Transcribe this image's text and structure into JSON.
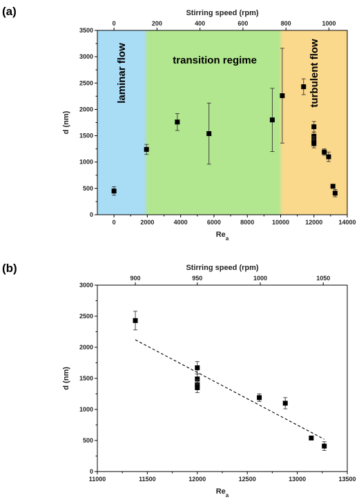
{
  "chart_data": [
    {
      "type": "scatter",
      "panel_label": "(a)",
      "xlabel_main": "Re",
      "xlabel_sub": "a",
      "ylabel": "d (nm)",
      "top_xlabel": "Stirring speed (rpm)",
      "xlim": [
        -1000,
        14000
      ],
      "ylim": [
        0,
        3500
      ],
      "xticks": [
        0,
        2000,
        4000,
        6000,
        8000,
        10000,
        12000,
        14000
      ],
      "yticks": [
        0,
        500,
        1000,
        1500,
        2000,
        2500,
        3000,
        3500
      ],
      "top_ticks": [
        {
          "label": "0",
          "x": 0
        },
        {
          "label": "200",
          "x": 2580
        },
        {
          "label": "400",
          "x": 5160
        },
        {
          "label": "600",
          "x": 7740
        },
        {
          "label": "800",
          "x": 10320
        },
        {
          "label": "1000",
          "x": 12900
        }
      ],
      "regions": [
        {
          "label": "laminar flow",
          "x0": -1000,
          "x1": 2000,
          "color": "#a9dcf5",
          "orientation": "vertical"
        },
        {
          "label": "transition regime",
          "x0": 2000,
          "x1": 10100,
          "color": "#b2e68f",
          "orientation": "horizontal"
        },
        {
          "label": "turbulent flow",
          "x0": 10100,
          "x1": 14000,
          "color": "#fbd98c",
          "orientation": "vertical"
        }
      ],
      "points": [
        {
          "x": 0,
          "y": 450,
          "err": 80
        },
        {
          "x": 1950,
          "y": 1240,
          "err": 95
        },
        {
          "x": 3800,
          "y": 1760,
          "err": 160
        },
        {
          "x": 5700,
          "y": 1540,
          "err": 580
        },
        {
          "x": 9500,
          "y": 1800,
          "err": 600
        },
        {
          "x": 10100,
          "y": 2260,
          "err": 900
        },
        {
          "x": 11380,
          "y": 2430,
          "err": 150
        },
        {
          "x": 12000,
          "y": 1670,
          "err": 100
        },
        {
          "x": 12000,
          "y": 1490,
          "err": 80
        },
        {
          "x": 12000,
          "y": 1400,
          "err": 80
        },
        {
          "x": 12000,
          "y": 1350,
          "err": 80
        },
        {
          "x": 12620,
          "y": 1190,
          "err": 60
        },
        {
          "x": 12880,
          "y": 1100,
          "err": 90
        },
        {
          "x": 13140,
          "y": 540,
          "err": 30
        },
        {
          "x": 13270,
          "y": 410,
          "err": 70
        }
      ]
    },
    {
      "type": "scatter",
      "panel_label": "(b)",
      "xlabel_main": "Re",
      "xlabel_sub": "a",
      "ylabel": "d (nm)",
      "top_xlabel": "Stirring speed (rpm)",
      "xlim": [
        11000,
        13500
      ],
      "ylim": [
        0,
        3000
      ],
      "xticks": [
        11000,
        11500,
        12000,
        12500,
        13000,
        13500
      ],
      "yticks": [
        0,
        500,
        1000,
        1500,
        2000,
        2500,
        3000
      ],
      "top_ticks": [
        {
          "label": "900",
          "x": 11380
        },
        {
          "label": "950",
          "x": 12000
        },
        {
          "label": "1000",
          "x": 12630
        },
        {
          "label": "1050",
          "x": 13260
        }
      ],
      "fit_line": {
        "x0": 11380,
        "y0": 2120,
        "x1": 13270,
        "y1": 520
      },
      "points": [
        {
          "x": 11380,
          "y": 2430,
          "err": 150
        },
        {
          "x": 12000,
          "y": 1670,
          "err": 100
        },
        {
          "x": 12000,
          "y": 1490,
          "err": 80
        },
        {
          "x": 12000,
          "y": 1400,
          "err": 80
        },
        {
          "x": 12000,
          "y": 1350,
          "err": 80
        },
        {
          "x": 12620,
          "y": 1190,
          "err": 60
        },
        {
          "x": 12880,
          "y": 1100,
          "err": 90
        },
        {
          "x": 13140,
          "y": 540,
          "err": 30
        },
        {
          "x": 13270,
          "y": 410,
          "err": 70
        }
      ]
    }
  ]
}
